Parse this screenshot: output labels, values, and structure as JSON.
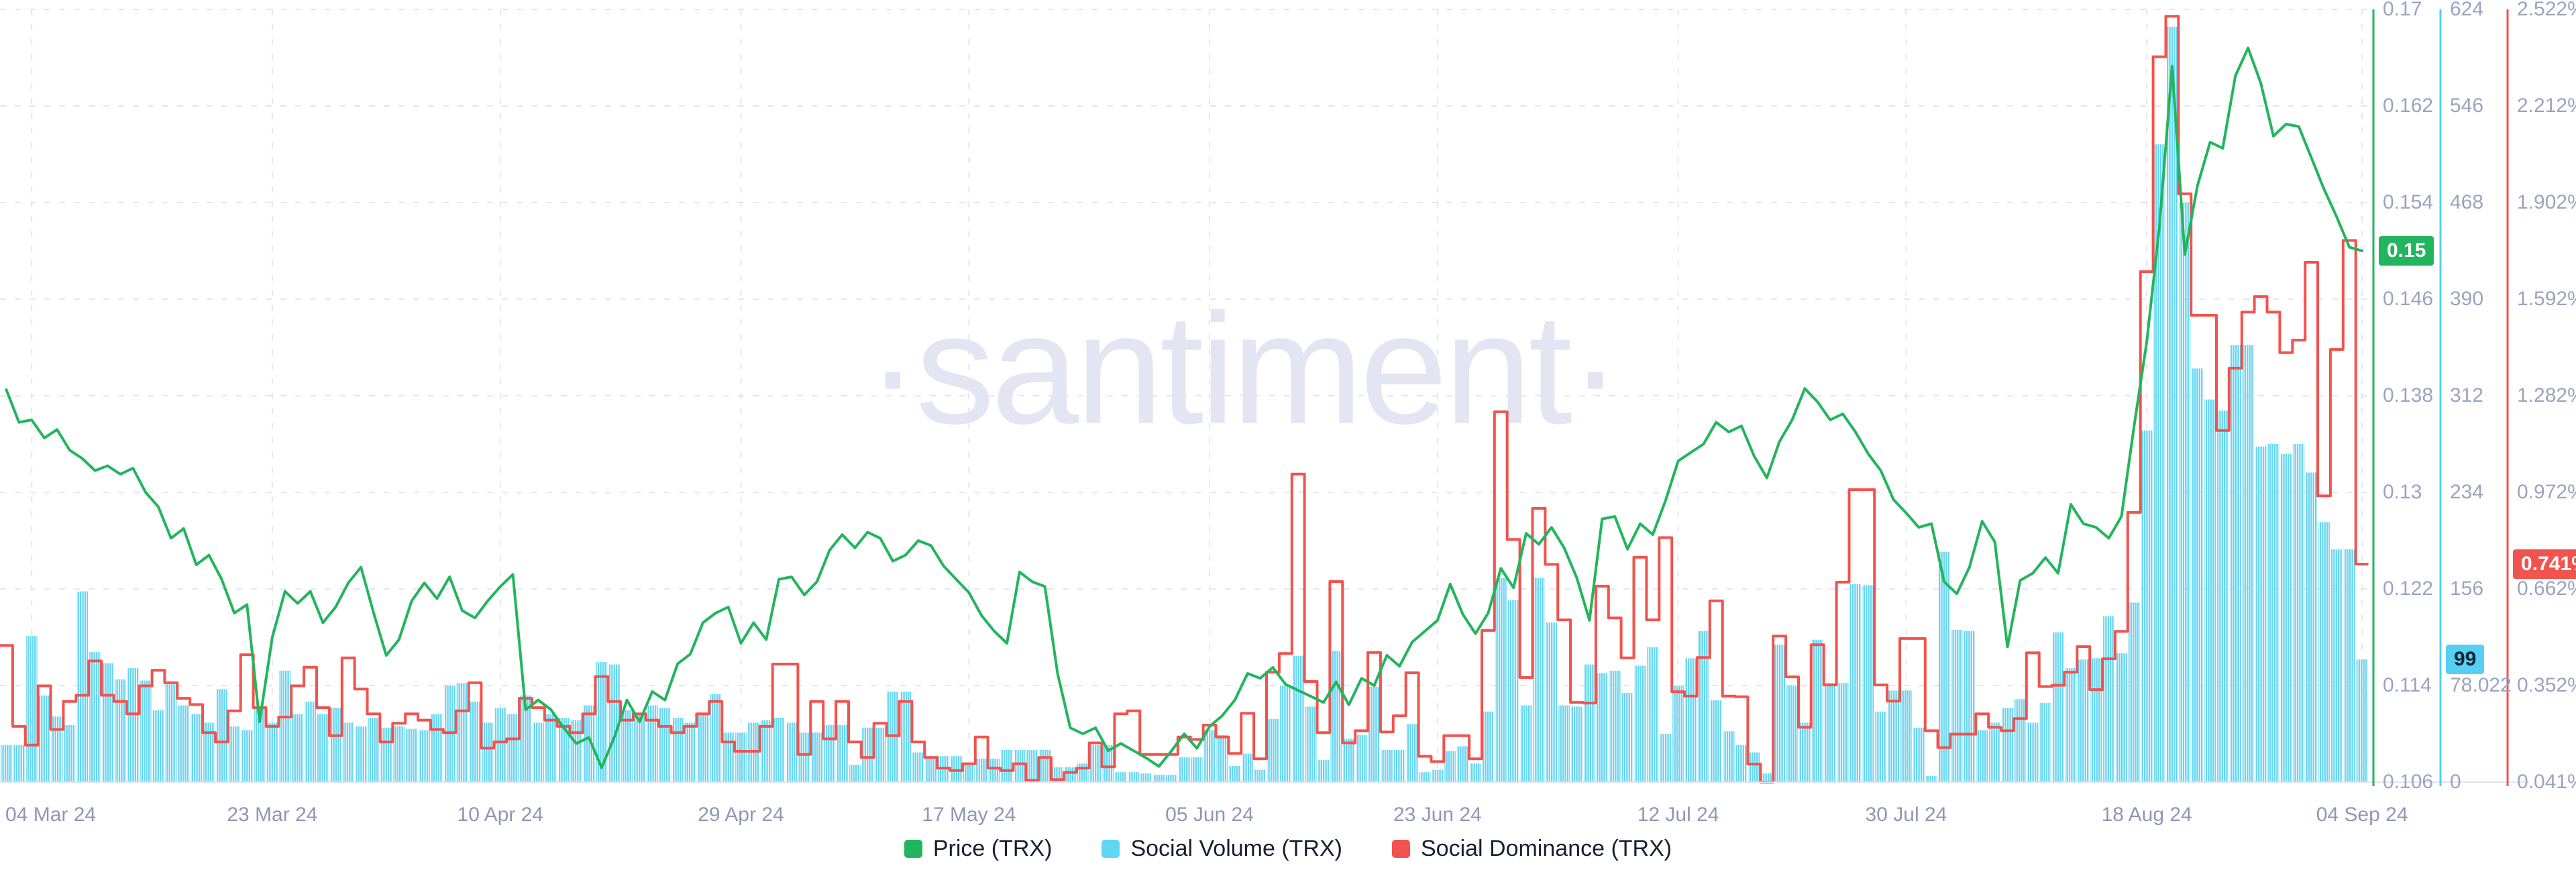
{
  "watermark": {
    "text": "·santiment·"
  },
  "legend": {
    "items": [
      {
        "label": "Price (TRX)"
      },
      {
        "label": "Social Volume (TRX)"
      },
      {
        "label": "Social Dominance (TRX)"
      }
    ]
  },
  "chart_data": {
    "type": "mixed",
    "grid": "dashed",
    "legend_position": "bottom-center",
    "x_ticks": [
      {
        "label": "04 Mar 24",
        "index": 2
      },
      {
        "label": "23 Mar 24",
        "index": 21
      },
      {
        "label": "10 Apr 24",
        "index": 39
      },
      {
        "label": "29 Apr 24",
        "index": 58
      },
      {
        "label": "17 May 24",
        "index": 76
      },
      {
        "label": "05 Jun 24",
        "index": 95
      },
      {
        "label": "23 Jun 24",
        "index": 113
      },
      {
        "label": "12 Jul 24",
        "index": 132
      },
      {
        "label": "30 Jul 24",
        "index": 150
      },
      {
        "label": "18 Aug 24",
        "index": 169
      },
      {
        "label": "04 Sep 24",
        "index": 186
      }
    ],
    "axes": {
      "price": {
        "ticks": [
          "0.17",
          "0.162",
          "0.154",
          "0.146",
          "0.138",
          "0.13",
          "0.122",
          "0.114",
          "0.106"
        ],
        "range": [
          0.106,
          0.17
        ],
        "last_value": "0.15",
        "color": "#22b55d"
      },
      "volume": {
        "ticks": [
          "624",
          "546",
          "468",
          "390",
          "312",
          "234",
          "156",
          "78.022",
          "0"
        ],
        "range": [
          0,
          624
        ],
        "last_value": "99",
        "color": "#55cff2"
      },
      "dominance": {
        "ticks": [
          "2.522%",
          "2.212%",
          "1.902%",
          "1.592%",
          "1.282%",
          "0.972%",
          "0.662%",
          "0.352%",
          "0.041%"
        ],
        "range": [
          0.041,
          2.522
        ],
        "last_value": "0.741%",
        "color": "#f1534e"
      }
    },
    "series": [
      {
        "name": "Price (TRX)",
        "type": "line",
        "axis": "price",
        "color": "#22b55d",
        "values": [
          0.1385,
          0.1358,
          0.136,
          0.1345,
          0.1352,
          0.1335,
          0.1328,
          0.1318,
          0.1322,
          0.1315,
          0.132,
          0.13,
          0.1288,
          0.1262,
          0.127,
          0.124,
          0.1248,
          0.1228,
          0.12,
          0.1207,
          0.111,
          0.118,
          0.1218,
          0.1208,
          0.1218,
          0.1192,
          0.1205,
          0.1225,
          0.1238,
          0.12,
          0.1165,
          0.1178,
          0.121,
          0.1225,
          0.1212,
          0.123,
          0.1202,
          0.1196,
          0.121,
          0.1222,
          0.1232,
          0.112,
          0.1128,
          0.112,
          0.1105,
          0.1092,
          0.1097,
          0.1072,
          0.1097,
          0.1128,
          0.111,
          0.1135,
          0.1128,
          0.1158,
          0.1166,
          0.1192,
          0.12,
          0.1205,
          0.1175,
          0.1192,
          0.1178,
          0.1228,
          0.123,
          0.1215,
          0.1226,
          0.1252,
          0.1265,
          0.1254,
          0.1267,
          0.1262,
          0.1243,
          0.1248,
          0.126,
          0.1256,
          0.1239,
          0.1228,
          0.1217,
          0.1198,
          0.1185,
          0.1175,
          0.1234,
          0.1226,
          0.1222,
          0.115,
          0.1105,
          0.11,
          0.1105,
          0.1086,
          0.1092,
          0.1086,
          0.108,
          0.1073,
          0.1086,
          0.11,
          0.1088,
          0.1106,
          0.1115,
          0.1128,
          0.115,
          0.1146,
          0.1155,
          0.1141,
          0.1136,
          0.1131,
          0.1126,
          0.1143,
          0.1124,
          0.1146,
          0.114,
          0.1165,
          0.1156,
          0.1176,
          0.1185,
          0.1194,
          0.1224,
          0.1199,
          0.1183,
          0.12,
          0.1237,
          0.1221,
          0.1266,
          0.1257,
          0.1271,
          0.1254,
          0.1229,
          0.1194,
          0.1278,
          0.128,
          0.1253,
          0.1274,
          0.1265,
          0.1293,
          0.1326,
          0.1333,
          0.134,
          0.1358,
          0.135,
          0.1355,
          0.133,
          0.1312,
          0.1342,
          0.136,
          0.1386,
          0.1375,
          0.136,
          0.1365,
          0.135,
          0.1332,
          0.1318,
          0.1294,
          0.1283,
          0.1271,
          0.1274,
          0.1226,
          0.1216,
          0.1238,
          0.1276,
          0.1259,
          0.1172,
          0.1227,
          0.1233,
          0.1246,
          0.1233,
          0.129,
          0.1274,
          0.1271,
          0.1262,
          0.128,
          0.1355,
          0.1425,
          0.152,
          0.1653,
          0.1497,
          0.1554,
          0.159,
          0.1585,
          0.1645,
          0.1668,
          0.1639,
          0.1595,
          0.1605,
          0.1603,
          0.1577,
          0.1551,
          0.1528,
          0.1503,
          0.15
        ]
      },
      {
        "name": "Social Volume (TRX)",
        "type": "bar",
        "axis": "volume",
        "color": "#63d4f1",
        "values": [
          30,
          30,
          118,
          70,
          53,
          46,
          154,
          105,
          96,
          83,
          92,
          82,
          58,
          79,
          62,
          55,
          48,
          75,
          45,
          42,
          60,
          48,
          90,
          55,
          65,
          55,
          60,
          48,
          45,
          52,
          44,
          45,
          43,
          42,
          55,
          78,
          80,
          65,
          48,
          60,
          55,
          70,
          48,
          55,
          52,
          50,
          62,
          97,
          95,
          58,
          55,
          62,
          60,
          52,
          48,
          56,
          71,
          40,
          40,
          48,
          50,
          52,
          48,
          40,
          40,
          46,
          46,
          14,
          44,
          44,
          73,
          73,
          24,
          21,
          21,
          21,
          14,
          19,
          19,
          26,
          26,
          26,
          26,
          12,
          12,
          15,
          30,
          30,
          8,
          8,
          7,
          6,
          6,
          20,
          20,
          42,
          38,
          13,
          23,
          10,
          51,
          78,
          102,
          61,
          18,
          106,
          35,
          38,
          77,
          26,
          26,
          47,
          8,
          10,
          25,
          29,
          15,
          57,
          165,
          147,
          62,
          165,
          129,
          62,
          61,
          95,
          88,
          90,
          72,
          94,
          109,
          39,
          78,
          100,
          122,
          66,
          41,
          30,
          24,
          7,
          111,
          78,
          48,
          115,
          80,
          80,
          160,
          159,
          57,
          74,
          74,
          44,
          5,
          186,
          123,
          122,
          42,
          48,
          60,
          67,
          48,
          64,
          121,
          92,
          99,
          100,
          134,
          104,
          145,
          284,
          515,
          610,
          468,
          334,
          309,
          300,
          353,
          353,
          271,
          273,
          265,
          273,
          250,
          210,
          188,
          188,
          99
        ]
      },
      {
        "name": "Social Dominance (TRX)",
        "type": "step-line",
        "axis": "dominance",
        "color": "#f1534e",
        "values": [
          0.48,
          0.22,
          0.16,
          0.35,
          0.21,
          0.3,
          0.32,
          0.43,
          0.32,
          0.3,
          0.26,
          0.35,
          0.4,
          0.36,
          0.31,
          0.29,
          0.2,
          0.17,
          0.27,
          0.45,
          0.28,
          0.22,
          0.25,
          0.35,
          0.41,
          0.28,
          0.19,
          0.44,
          0.34,
          0.26,
          0.17,
          0.23,
          0.26,
          0.24,
          0.21,
          0.2,
          0.27,
          0.36,
          0.15,
          0.17,
          0.18,
          0.31,
          0.28,
          0.24,
          0.22,
          0.2,
          0.26,
          0.38,
          0.3,
          0.24,
          0.26,
          0.24,
          0.22,
          0.2,
          0.22,
          0.26,
          0.3,
          0.17,
          0.14,
          0.14,
          0.22,
          0.42,
          0.42,
          0.13,
          0.3,
          0.18,
          0.3,
          0.17,
          0.12,
          0.23,
          0.19,
          0.3,
          0.17,
          0.12,
          0.086,
          0.078,
          0.1,
          0.186,
          0.086,
          0.078,
          0.1,
          0.047,
          0.12,
          0.049,
          0.072,
          0.086,
          0.167,
          0.09,
          0.26,
          0.27,
          0.13,
          0.13,
          0.13,
          0.186,
          0.178,
          0.224,
          0.186,
          0.133,
          0.262,
          0.116,
          0.394,
          0.454,
          1.03,
          0.364,
          0.2,
          0.685,
          0.167,
          0.206,
          0.457,
          0.202,
          0.254,
          0.392,
          0.124,
          0.107,
          0.19,
          0.19,
          0.116,
          0.528,
          1.23,
          0.82,
          0.377,
          0.92,
          0.74,
          0.562,
          0.297,
          0.295,
          0.67,
          0.568,
          0.44,
          0.763,
          0.562,
          0.826,
          0.331,
          0.317,
          0.441,
          0.623,
          0.317,
          0.315,
          0.099,
          0.041,
          0.51,
          0.379,
          0.217,
          0.482,
          0.353,
          0.683,
          0.98,
          0.98,
          0.353,
          0.301,
          0.502,
          0.502,
          0.206,
          0.152,
          0.195,
          0.195,
          0.26,
          0.217,
          0.206,
          0.245,
          0.456,
          0.348,
          0.352,
          0.394,
          0.476,
          0.338,
          0.437,
          0.525,
          0.907,
          1.68,
          2.37,
          2.5,
          1.93,
          1.54,
          1.54,
          1.17,
          1.37,
          1.55,
          1.6,
          1.55,
          1.42,
          1.46,
          1.71,
          0.96,
          1.43,
          1.78,
          0.741
        ]
      }
    ],
    "style": {
      "grid_color": "#e3e7f2",
      "axis_base_color": "#e0e4f0",
      "tick_text_color": "#9aa4bf",
      "date_text_color": "#8d98b6",
      "badge_text_light": "#ffffff",
      "badge_text_dark": "#0c2233",
      "bar_stripe_color": "#67d5f1"
    }
  }
}
